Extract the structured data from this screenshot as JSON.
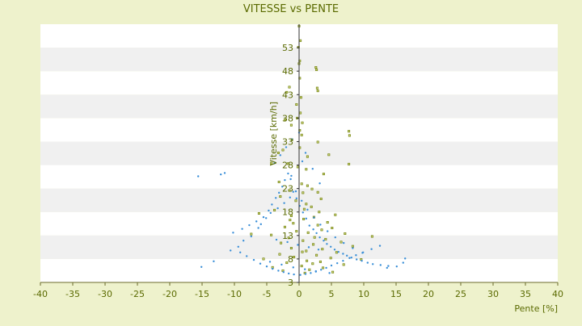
{
  "chart_data": {
    "type": "scatter",
    "title": "VITESSE vs PENTE",
    "xlabel": "Pente [%]",
    "ylabel": "Vitesse [km/h]",
    "xlim": [
      -40,
      40
    ],
    "ylim": [
      3,
      58
    ],
    "x_ticks": [
      "-40",
      "-35",
      "-30",
      "-25",
      "-20",
      "-15",
      "-10",
      "-5",
      "0",
      "5",
      "10",
      "15",
      "20",
      "25",
      "30",
      "35",
      "40"
    ],
    "y_ticks": [
      "3",
      "8",
      "13",
      "18",
      "23",
      "28",
      "33",
      "38",
      "43",
      "48",
      "53"
    ],
    "grid": "alternating horizontal bands",
    "legend": "none",
    "colors": {
      "page_bg": "#eef2cc",
      "band_light": "#ffffff",
      "band_dark": "#f0f0f0",
      "text": "#5a6a00",
      "axis": "#6a6a2a",
      "series_olive": "#6b7a00",
      "series_blue": "#3a8fd8"
    },
    "series": [
      {
        "color": "#6b7a00",
        "x": [
          0,
          0.2,
          -0.1,
          0.1,
          0,
          2.6,
          2.7,
          0.1,
          -1.5,
          -1.9,
          2.8,
          2.9,
          0.3,
          -0.4,
          0.2,
          -2.2,
          -1.2,
          -0.3,
          0.5,
          0.1,
          0.4,
          -1.1,
          7.7,
          7.8,
          2.9,
          0.1,
          -2.5,
          -3.2,
          1.3,
          4.6,
          -4.3,
          -1.7,
          -0.2,
          1.1,
          7.7,
          3.8,
          -3.1,
          0.4,
          1.3,
          2.0,
          -1.5,
          0.6,
          2.9,
          -2.9,
          3.4,
          -0.5,
          1.1,
          1.9,
          -3.8,
          0.8,
          3.1,
          -6.2,
          -1.2,
          5.6,
          2.3,
          0.7,
          -1.4,
          4.4,
          -0.9,
          2.9,
          5.1,
          -2.2,
          3.5,
          1.4,
          -0.4,
          7.1,
          -4.3,
          2.4,
          4.1,
          -1.6,
          0.6,
          6.5,
          -2.8,
          2.2,
          8.3,
          -1.2,
          3.6,
          1.1,
          0.5,
          -3.0,
          5.8,
          2.7,
          -0.8,
          4.9,
          -5.5,
          1.2,
          9.6,
          3.3,
          -1.9,
          2.1,
          6.9,
          0.4,
          -4.1,
          3.7,
          1.6,
          11.3,
          -2.5,
          5.2,
          0.9,
          -7.4
        ],
        "y": [
          57.6,
          54.5,
          53.1,
          50.2,
          49.6,
          48.8,
          48.3,
          46.5,
          44.6,
          43.5,
          44.4,
          43.8,
          42.4,
          40.9,
          39.1,
          37.6,
          36.5,
          38.0,
          37.0,
          35.4,
          34.4,
          33.4,
          35.2,
          34.3,
          32.9,
          31.7,
          31.2,
          30.6,
          29.8,
          30.2,
          28.4,
          28.3,
          27.6,
          27.1,
          28.2,
          26.1,
          24.4,
          24.0,
          23.6,
          22.9,
          22.6,
          22.1,
          22.2,
          21.3,
          20.8,
          20.4,
          19.7,
          19.1,
          18.4,
          18.6,
          18.0,
          17.7,
          17.2,
          17.4,
          16.9,
          16.5,
          16.3,
          15.8,
          15.6,
          15.2,
          14.6,
          14.8,
          14.2,
          13.6,
          13.9,
          13.4,
          13.1,
          12.6,
          12.2,
          12.5,
          11.9,
          11.6,
          11.4,
          11.1,
          10.7,
          10.3,
          10.1,
          9.7,
          9.5,
          9.0,
          9.4,
          8.8,
          8.4,
          8.2,
          8.0,
          7.6,
          7.9,
          7.4,
          7.2,
          7.0,
          6.8,
          6.5,
          6.2,
          6.1,
          5.7,
          12.8,
          5.5,
          5.2,
          5.0,
          13.3
        ]
      },
      {
        "color": "#3a8fd8",
        "x": [
          -15.6,
          -12.1,
          -11.5,
          -15.1,
          -13.2,
          -10.6,
          -9.4,
          -8.6,
          -7.4,
          -6.3,
          -5.9,
          -5.1,
          -4.7,
          -4.2,
          -3.6,
          -3.1,
          -2.6,
          -2.2,
          -1.7,
          -1.3,
          -0.9,
          -0.4,
          0.1,
          0.6,
          1.1,
          1.6,
          2.2,
          2.7,
          3.2,
          3.8,
          4.3,
          4.9,
          5.5,
          6.1,
          6.8,
          7.4,
          8.1,
          8.9,
          9.7,
          10.6,
          11.4,
          12.6,
          13.8,
          15.1,
          16.1,
          16.4,
          -9.1,
          -8.1,
          -7.0,
          -6.0,
          -5.0,
          -4.1,
          -3.2,
          -2.4,
          -1.6,
          -0.8,
          0.2,
          1.0,
          1.8,
          2.6,
          3.4,
          4.2,
          5.0,
          5.9,
          6.8,
          7.8,
          8.8,
          9.9,
          11.2,
          12.5,
          -10.2,
          -8.8,
          -7.7,
          -6.6,
          -5.5,
          -4.4,
          -3.3,
          -2.3,
          -1.4,
          -0.5,
          0.4,
          1.3,
          2.3,
          3.3,
          4.4,
          5.6,
          6.9,
          8.3,
          9.8,
          13.6,
          -3.8,
          -2.9,
          -2.0,
          -1.1,
          0.0,
          1.0,
          2.1,
          3.2,
          -3.5,
          -1.8,
          -0.2,
          1.5,
          3.0,
          -4.5,
          -2.7,
          -0.9,
          0.9,
          2.6,
          4.7,
          -1.2,
          0.5
        ],
        "y": [
          25.6,
          26.0,
          26.3,
          6.3,
          7.5,
          9.8,
          10.6,
          11.9,
          12.8,
          14.6,
          15.4,
          16.7,
          18.3,
          19.6,
          21.0,
          22.1,
          23.4,
          24.8,
          26.2,
          25.0,
          22.3,
          20.9,
          19.3,
          17.9,
          16.6,
          15.1,
          14.3,
          13.5,
          12.6,
          11.9,
          11.2,
          10.6,
          10.0,
          9.5,
          9.1,
          8.7,
          8.3,
          7.9,
          7.6,
          7.2,
          6.9,
          6.7,
          6.5,
          6.4,
          7.2,
          8.1,
          9.4,
          8.6,
          7.8,
          7.0,
          6.4,
          5.9,
          5.5,
          5.2,
          4.9,
          4.7,
          4.6,
          4.8,
          5.0,
          5.3,
          5.7,
          6.1,
          6.6,
          7.1,
          7.6,
          8.2,
          8.8,
          9.4,
          10.1,
          10.8,
          13.6,
          14.4,
          15.2,
          16.0,
          16.9,
          17.8,
          18.8,
          19.9,
          21.1,
          22.4,
          20.4,
          18.5,
          16.8,
          15.3,
          13.9,
          12.6,
          11.4,
          10.3,
          9.3,
          6.1,
          28.4,
          30.1,
          31.8,
          33.5,
          34.9,
          30.6,
          27.2,
          24.1,
          12.1,
          11.6,
          11.0,
          10.5,
          10.0,
          7.4,
          6.8,
          6.2,
          5.8,
          5.4,
          5.0,
          25.7,
          28.8
        ]
      }
    ]
  }
}
